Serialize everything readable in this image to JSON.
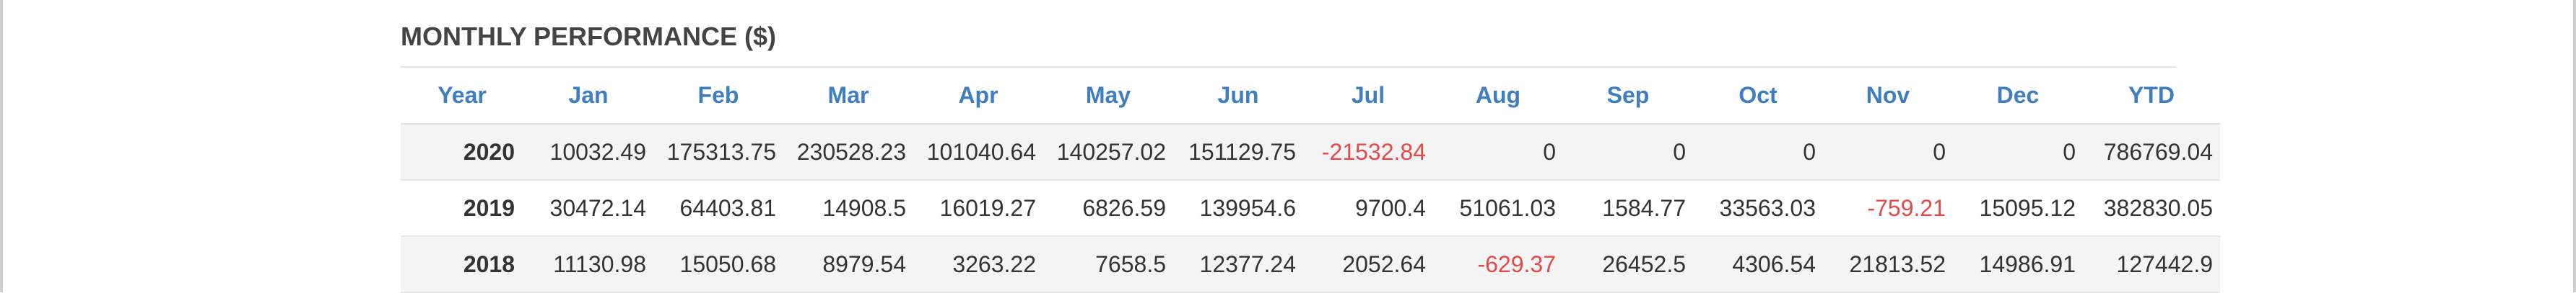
{
  "title": "MONTHLY PERFORMANCE ($)",
  "colors": {
    "header_text": "#3f7ec0",
    "negative": "#e24a4a",
    "row_shade": "#f4f4f4"
  },
  "columns": [
    "Year",
    "Jan",
    "Feb",
    "Mar",
    "Apr",
    "May",
    "Jun",
    "Jul",
    "Aug",
    "Sep",
    "Oct",
    "Nov",
    "Dec",
    "YTD"
  ],
  "rows": [
    {
      "year": "2020",
      "values": [
        "10032.49",
        "175313.75",
        "230528.23",
        "101040.64",
        "140257.02",
        "151129.75",
        "-21532.84",
        "0",
        "0",
        "0",
        "0",
        "0",
        "786769.04"
      ]
    },
    {
      "year": "2019",
      "values": [
        "30472.14",
        "64403.81",
        "14908.5",
        "16019.27",
        "6826.59",
        "139954.6",
        "9700.4",
        "51061.03",
        "1584.77",
        "33563.03",
        "-759.21",
        "15095.12",
        "382830.05"
      ]
    },
    {
      "year": "2018",
      "values": [
        "11130.98",
        "15050.68",
        "8979.54",
        "3263.22",
        "7658.5",
        "12377.24",
        "2052.64",
        "-629.37",
        "26452.5",
        "4306.54",
        "21813.52",
        "14986.91",
        "127442.9"
      ]
    }
  ]
}
